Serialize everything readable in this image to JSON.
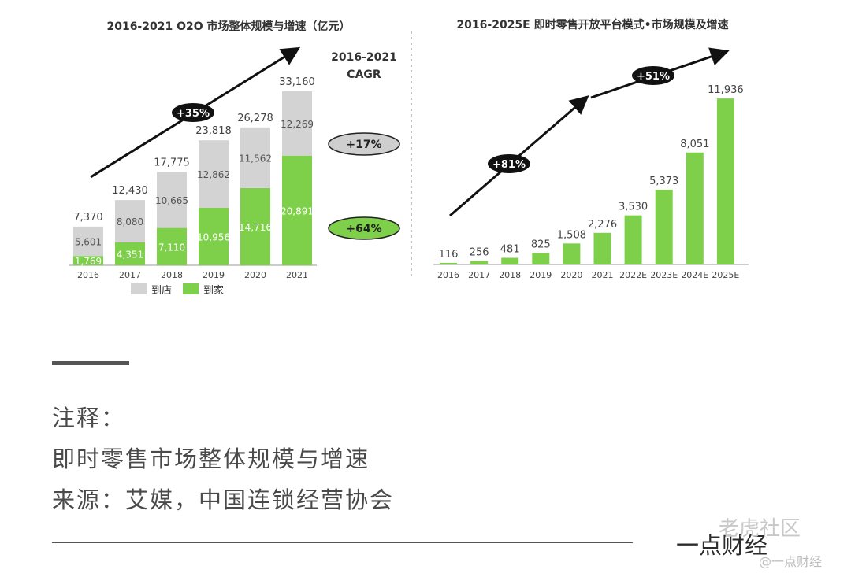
{
  "chart_data": [
    {
      "type": "bar",
      "stacked": true,
      "title": "2016-2021 O2O 市场整体规模与增速（亿元）",
      "unit": "亿元",
      "categories": [
        "2016",
        "2017",
        "2018",
        "2019",
        "2020",
        "2021"
      ],
      "series": [
        {
          "name": "到家",
          "color": "#7ed04b",
          "values": [
            1769,
            4351,
            7110,
            10956,
            14716,
            20891
          ]
        },
        {
          "name": "到店",
          "color": "#d3d3d3",
          "values": [
            5601,
            8080,
            10665,
            12862,
            11562,
            12269
          ]
        }
      ],
      "totals": [
        7370,
        12430,
        17775,
        23818,
        26278,
        33160
      ],
      "total_labels": [
        "7,370",
        "12,430",
        "17,775",
        "23,818",
        "26,278",
        "33,160"
      ],
      "series_labels": {
        "到家": [
          "1,769",
          "4,351",
          "7,110",
          "10,956",
          "14,716",
          "20,891"
        ],
        "到店": [
          "5,601",
          "8,080",
          "10,665",
          "12,862",
          "11,562",
          "12,269"
        ]
      },
      "ylim": [
        0,
        36000
      ],
      "cagr_header": [
        "2016-2021",
        "CAGR"
      ],
      "growth_annotation": "+35%",
      "cagr": [
        {
          "series": "到店",
          "label": "+17%",
          "color": "#cfcfcf"
        },
        {
          "series": "到家",
          "label": "+64%",
          "color": "#7ed04b"
        }
      ],
      "legend": [
        "到店",
        "到家"
      ]
    },
    {
      "type": "bar",
      "title": "2016-2025E 即时零售开放平台模式•市场规模及增速",
      "categories": [
        "2016",
        "2017",
        "2018",
        "2019",
        "2020",
        "2021",
        "2022E",
        "2023E",
        "2024E",
        "2025E"
      ],
      "values": [
        116,
        256,
        481,
        825,
        1508,
        2276,
        3530,
        5373,
        8051,
        11936
      ],
      "value_labels": [
        "116",
        "256",
        "481",
        "825",
        "1,508",
        "2,276",
        "3,530",
        "5,373",
        "8,051",
        "11,936"
      ],
      "color": "#7ed04b",
      "ylim": [
        0,
        12000
      ],
      "growth_annotations": [
        "+81%",
        "+51%"
      ]
    }
  ],
  "notes": {
    "heading": "注释：",
    "line1": "即时零售市场整体规模与增速",
    "line2": "来源：艾媒，中国连锁经营协会"
  },
  "footer": {
    "brand": "一点财经",
    "watermark_main": "老虎社区",
    "watermark_sub": "@一点财经"
  }
}
